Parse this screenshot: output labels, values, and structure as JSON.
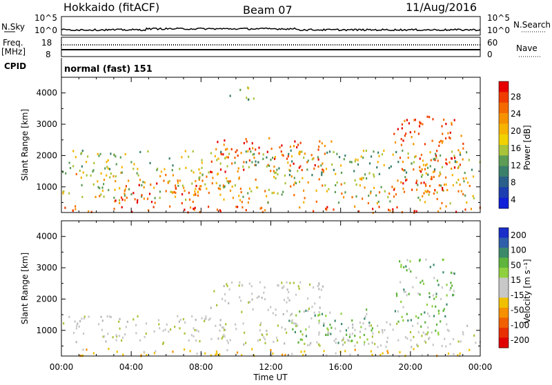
{
  "header": {
    "station": "Hokkaido (fitACF)",
    "beam": "Beam 07",
    "date": "11/Aug/2016"
  },
  "panels": {
    "nsky": {
      "label": "N.Sky",
      "tick_top": "10^5",
      "tick_bottom": "10^0",
      "right_tick_top": "10^5",
      "right_tick_bottom": "10^0",
      "right_label": "N.Search"
    },
    "freq": {
      "label_line1": "Freq.",
      "label_line2": "[MHz]",
      "tick_top": "18",
      "tick_bottom": "8",
      "right_tick_top": "60",
      "right_tick_bottom": "0",
      "right_label": "Nave"
    },
    "cpid": {
      "label": "CPID",
      "mode": "normal (fast) 151"
    }
  },
  "chart_data": [
    {
      "type": "heatmap",
      "name": "power",
      "ylabel": "Slant Range [km]",
      "xlabel": "Time UT",
      "x_range": [
        "00:00",
        "24:00"
      ],
      "y_range": [
        180,
        4500
      ],
      "yticks": [
        1000,
        2000,
        3000,
        4000
      ],
      "colorbar": {
        "label": "Power [dB]",
        "ticks": [
          "28",
          "24",
          "20",
          "16",
          "12",
          "8",
          "4"
        ],
        "colors": [
          "#e60000",
          "#f03c00",
          "#f56a00",
          "#f69200",
          "#f6b400",
          "#f1d200",
          "#a9c33a",
          "#5c9c55",
          "#3a7f6a",
          "#2a5f8a",
          "#1d3fb0",
          "#1020d8"
        ]
      },
      "echo_bands": [
        {
          "t0": 0.0,
          "t1": 9.5,
          "r0": 600,
          "r1": 1500,
          "level": "mid"
        },
        {
          "t0": 3.0,
          "t1": 8.0,
          "r0": 500,
          "r1": 1200,
          "level": "high"
        },
        {
          "t0": 0.0,
          "t1": 24.0,
          "r0": 200,
          "r1": 420,
          "level": "high"
        },
        {
          "t0": 8.5,
          "t1": 15.5,
          "r0": 1500,
          "r1": 2600,
          "level": "high"
        },
        {
          "t0": 9.0,
          "t1": 24.0,
          "r0": 500,
          "r1": 1400,
          "level": "mid"
        },
        {
          "t0": 19.0,
          "t1": 23.0,
          "r0": 900,
          "r1": 3300,
          "level": "high"
        },
        {
          "t0": 0.0,
          "t1": 24.0,
          "r0": 1400,
          "r1": 2200,
          "level": "low"
        },
        {
          "t0": 9.5,
          "t1": 11.0,
          "r0": 3800,
          "r1": 4300,
          "level": "low"
        }
      ]
    },
    {
      "type": "heatmap",
      "name": "velocity",
      "ylabel": "Slant Range [km]",
      "xlabel": "Time UT",
      "x_range": [
        "00:00",
        "24:00"
      ],
      "y_range": [
        180,
        4500
      ],
      "yticks": [
        1000,
        2000,
        3000,
        4000
      ],
      "xticks": [
        "00:00",
        "04:00",
        "08:00",
        "12:00",
        "16:00",
        "20:00",
        "00:00"
      ],
      "colorbar": {
        "label": "Velocity [m s⁻¹]",
        "ticks": [
          "200",
          "100",
          "50",
          "15",
          "-15",
          "-50",
          "-100",
          "-200"
        ],
        "colors": [
          "#1a2ec8",
          "#2f5fa8",
          "#3d8a6a",
          "#5fb43c",
          "#8fd040",
          "#c8c8c8",
          "#c8c8c8",
          "#f0c000",
          "#f59000",
          "#f06000",
          "#e83000",
          "#e00000"
        ]
      },
      "echo_bands": [
        {
          "t0": 0.0,
          "t1": 9.5,
          "r0": 600,
          "r1": 1500,
          "level": "gray"
        },
        {
          "t0": 8.5,
          "t1": 15.0,
          "r0": 1500,
          "r1": 2600,
          "level": "gray"
        },
        {
          "t0": 9.0,
          "t1": 24.0,
          "r0": 500,
          "r1": 1300,
          "level": "gray"
        },
        {
          "t0": 13.0,
          "t1": 18.0,
          "r0": 600,
          "r1": 1700,
          "level": "green"
        },
        {
          "t0": 19.0,
          "t1": 22.5,
          "r0": 900,
          "r1": 3300,
          "level": "green"
        },
        {
          "t0": 0.0,
          "t1": 24.0,
          "r0": 200,
          "r1": 450,
          "level": "orange"
        }
      ]
    }
  ]
}
